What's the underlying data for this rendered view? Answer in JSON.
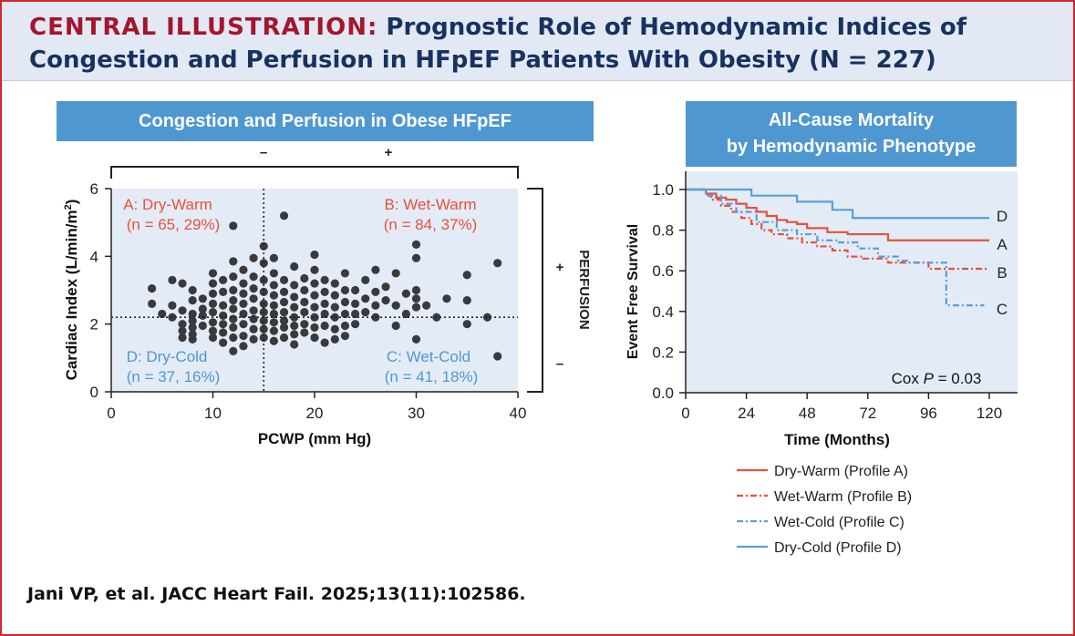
{
  "header": {
    "prefix": "CENTRAL ILLUSTRATION:",
    "title_line1": "Prognostic Role of Hemodynamic Indices of",
    "title_line2": "Congestion and Perfusion in HFpEF Patients With Obesity (N = 227)"
  },
  "citation": "Jani VP, et al. JACC Heart Fail. 2025;13(11):102586.",
  "colors": {
    "accent_red": "#a5152c",
    "navy": "#17325f",
    "panel_blue": "#4f97d1",
    "profile_a": "#e8503a",
    "profile_b": "#e8503a",
    "profile_c": "#5a9fd4",
    "profile_d": "#5a9fd4",
    "warm_text": "#e8503a",
    "cold_text": "#4f97d1"
  },
  "chart_data": [
    {
      "type": "scatter",
      "title": "Congestion and Perfusion in Obese HFpEF",
      "xlabel": "PCWP (mm Hg)",
      "ylabel": "Cardiac Index (L/min/m²)",
      "ylabel_main": "Cardiac Index (L/min/m",
      "ylabel_sup": "2",
      "ylabel_end": ")",
      "xlim": [
        0,
        40
      ],
      "ylim": [
        0,
        6
      ],
      "xticks": [
        "0",
        "10",
        "20",
        "30",
        "40"
      ],
      "yticks": [
        "0",
        "2",
        "4",
        "6"
      ],
      "threshold_x": 15,
      "threshold_y": 2.2,
      "congestion_minus": "–",
      "congestion_plus": "+",
      "perfusion_label": "PERFUSION",
      "perfusion_plus": "+",
      "perfusion_minus": "–",
      "quadrants": [
        {
          "name": "A: Dry-Warm",
          "count": "(n = 65, 29%)"
        },
        {
          "name": "B: Wet-Warm",
          "count": "(n = 84, 37%)"
        },
        {
          "name": "D: Dry-Cold",
          "count": "(n = 37, 16%)"
        },
        {
          "name": "C: Wet-Cold",
          "count": "(n = 41, 18%)"
        }
      ],
      "points": [
        [
          4,
          3.05
        ],
        [
          4,
          2.6
        ],
        [
          5,
          2.3
        ],
        [
          6,
          3.3
        ],
        [
          6,
          2.55
        ],
        [
          6,
          2.2
        ],
        [
          7,
          3.2
        ],
        [
          7,
          2.4
        ],
        [
          7,
          2.0
        ],
        [
          7,
          1.8
        ],
        [
          7,
          1.6
        ],
        [
          8,
          3.0
        ],
        [
          8,
          2.7
        ],
        [
          8,
          2.3
        ],
        [
          8,
          2.1
        ],
        [
          8,
          1.9
        ],
        [
          8,
          1.7
        ],
        [
          8,
          1.55
        ],
        [
          9,
          2.75
        ],
        [
          9,
          2.45
        ],
        [
          9,
          2.25
        ],
        [
          9,
          1.95
        ],
        [
          10,
          3.5
        ],
        [
          10,
          3.2
        ],
        [
          10,
          2.9
        ],
        [
          10,
          2.6
        ],
        [
          10,
          2.35
        ],
        [
          10,
          2.05
        ],
        [
          10,
          1.8
        ],
        [
          10,
          1.6
        ],
        [
          11,
          3.3
        ],
        [
          11,
          2.95
        ],
        [
          11,
          2.55
        ],
        [
          11,
          2.25
        ],
        [
          11,
          2.0
        ],
        [
          11,
          1.75
        ],
        [
          11,
          1.45
        ],
        [
          12,
          4.9
        ],
        [
          12,
          3.85
        ],
        [
          12,
          3.4
        ],
        [
          12,
          3.0
        ],
        [
          12,
          2.7
        ],
        [
          12,
          2.45
        ],
        [
          12,
          2.15
        ],
        [
          12,
          1.9
        ],
        [
          12,
          1.6
        ],
        [
          12,
          1.2
        ],
        [
          13,
          3.6
        ],
        [
          13,
          3.2
        ],
        [
          13,
          2.9
        ],
        [
          13,
          2.6
        ],
        [
          13,
          2.3
        ],
        [
          13,
          2.0
        ],
        [
          13,
          1.65
        ],
        [
          13,
          1.35
        ],
        [
          14,
          3.95
        ],
        [
          14,
          3.4
        ],
        [
          14,
          3.05
        ],
        [
          14,
          2.75
        ],
        [
          14,
          2.4
        ],
        [
          14,
          2.15
        ],
        [
          14,
          1.85
        ],
        [
          14,
          1.55
        ],
        [
          15,
          4.3
        ],
        [
          15,
          3.8
        ],
        [
          15,
          3.3
        ],
        [
          15,
          2.95
        ],
        [
          15,
          2.6
        ],
        [
          15,
          2.35
        ],
        [
          15,
          2.1
        ],
        [
          15,
          1.85
        ],
        [
          15,
          1.6
        ],
        [
          16,
          3.95
        ],
        [
          16,
          3.5
        ],
        [
          16,
          3.15
        ],
        [
          16,
          2.85
        ],
        [
          16,
          2.55
        ],
        [
          16,
          2.3
        ],
        [
          16,
          2.05
        ],
        [
          16,
          1.8
        ],
        [
          16,
          1.5
        ],
        [
          17,
          5.2
        ],
        [
          17,
          3.3
        ],
        [
          17,
          2.95
        ],
        [
          17,
          2.65
        ],
        [
          17,
          2.35
        ],
        [
          17,
          2.1
        ],
        [
          17,
          1.9
        ],
        [
          17,
          1.6
        ],
        [
          18,
          3.7
        ],
        [
          18,
          3.15
        ],
        [
          18,
          2.8
        ],
        [
          18,
          2.5
        ],
        [
          18,
          2.2
        ],
        [
          18,
          1.95
        ],
        [
          18,
          1.7
        ],
        [
          18,
          1.4
        ],
        [
          19,
          3.35
        ],
        [
          19,
          3.0
        ],
        [
          19,
          2.65
        ],
        [
          19,
          2.35
        ],
        [
          19,
          2.0
        ],
        [
          19,
          1.75
        ],
        [
          20,
          4.05
        ],
        [
          20,
          3.6
        ],
        [
          20,
          3.2
        ],
        [
          20,
          2.85
        ],
        [
          20,
          2.5
        ],
        [
          20,
          2.2
        ],
        [
          20,
          1.9
        ],
        [
          20,
          1.6
        ],
        [
          21,
          3.3
        ],
        [
          21,
          2.95
        ],
        [
          21,
          2.6
        ],
        [
          21,
          2.3
        ],
        [
          21,
          1.95
        ],
        [
          21,
          1.45
        ],
        [
          22,
          3.2
        ],
        [
          22,
          2.85
        ],
        [
          22,
          2.5
        ],
        [
          22,
          2.2
        ],
        [
          22,
          1.85
        ],
        [
          22,
          1.55
        ],
        [
          23,
          3.5
        ],
        [
          23,
          3.0
        ],
        [
          23,
          2.65
        ],
        [
          23,
          2.3
        ],
        [
          23,
          1.95
        ],
        [
          23,
          1.65
        ],
        [
          24,
          3.0
        ],
        [
          24,
          2.6
        ],
        [
          24,
          2.3
        ],
        [
          24,
          2.0
        ],
        [
          25,
          3.3
        ],
        [
          25,
          2.75
        ],
        [
          25,
          2.35
        ],
        [
          26,
          3.6
        ],
        [
          26,
          2.95
        ],
        [
          26,
          2.55
        ],
        [
          26,
          2.2
        ],
        [
          27,
          3.1
        ],
        [
          27,
          2.7
        ],
        [
          28,
          3.5
        ],
        [
          28,
          2.55
        ],
        [
          28,
          1.95
        ],
        [
          29,
          2.9
        ],
        [
          29,
          2.3
        ],
        [
          30,
          4.35
        ],
        [
          30,
          3.95
        ],
        [
          30,
          3.0
        ],
        [
          30,
          2.75
        ],
        [
          30,
          2.5
        ],
        [
          30,
          1.55
        ],
        [
          31,
          2.55
        ],
        [
          32,
          2.2
        ],
        [
          33,
          2.75
        ],
        [
          35,
          3.45
        ],
        [
          35,
          2.7
        ],
        [
          35,
          2.0
        ],
        [
          37,
          2.2
        ],
        [
          38,
          3.8
        ],
        [
          38,
          1.05
        ]
      ]
    },
    {
      "type": "line",
      "title_line1": "All-Cause Mortality",
      "title_line2": "by Hemodynamic Phenotype",
      "xlabel": "Time (Months)",
      "ylabel": "Event Free Survival",
      "xlim": [
        0,
        120
      ],
      "ylim": [
        0,
        1.0
      ],
      "xticks": [
        "0",
        "24",
        "48",
        "72",
        "96",
        "120"
      ],
      "yticks": [
        "0.0",
        "0.2",
        "0.4",
        "0.6",
        "0.8",
        "1.0"
      ],
      "annotation_prefix": "Cox ",
      "annotation_p": "P",
      "annotation_suffix": " = 0.03",
      "series": [
        {
          "name": "Dry-Warm (Profile A)",
          "label": "A",
          "style": "solid",
          "color": "#e8503a",
          "x": [
            0,
            8,
            12,
            16,
            20,
            24,
            28,
            32,
            36,
            40,
            44,
            48,
            56,
            64,
            80,
            120
          ],
          "y": [
            1.0,
            0.98,
            0.96,
            0.95,
            0.93,
            0.91,
            0.89,
            0.87,
            0.85,
            0.84,
            0.83,
            0.81,
            0.79,
            0.78,
            0.75,
            0.75
          ]
        },
        {
          "name": "Wet-Warm (Profile B)",
          "label": "B",
          "style": "dashdot",
          "color": "#e8503a",
          "x": [
            0,
            8,
            10,
            14,
            18,
            22,
            26,
            30,
            34,
            40,
            46,
            52,
            58,
            64,
            70,
            80,
            96,
            120
          ],
          "y": [
            1.0,
            0.97,
            0.95,
            0.92,
            0.89,
            0.86,
            0.83,
            0.8,
            0.78,
            0.76,
            0.74,
            0.72,
            0.7,
            0.67,
            0.66,
            0.64,
            0.61,
            0.61
          ]
        },
        {
          "name": "Wet-Cold (Profile C)",
          "label": "C",
          "style": "dashdot",
          "color": "#5a9fd4",
          "x": [
            0,
            8,
            14,
            20,
            28,
            36,
            44,
            52,
            60,
            68,
            76,
            84,
            88,
            102,
            103,
            118
          ],
          "y": [
            1.0,
            0.97,
            0.93,
            0.89,
            0.84,
            0.8,
            0.78,
            0.75,
            0.74,
            0.71,
            0.67,
            0.65,
            0.64,
            0.64,
            0.43,
            0.43
          ]
        },
        {
          "name": "Dry-Cold (Profile D)",
          "label": "D",
          "style": "solid",
          "color": "#5a9fd4",
          "x": [
            0,
            20,
            26,
            44,
            58,
            66,
            120
          ],
          "y": [
            1.0,
            1.0,
            0.97,
            0.94,
            0.9,
            0.86,
            0.86
          ]
        }
      ]
    }
  ]
}
